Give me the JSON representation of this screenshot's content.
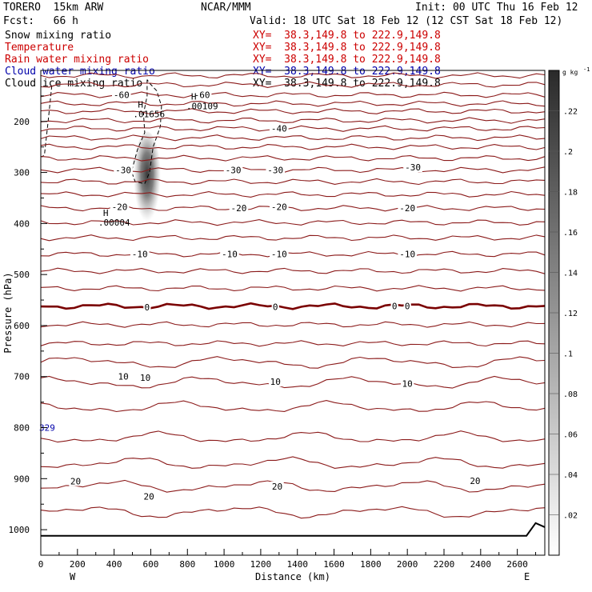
{
  "header": {
    "model": "TORERO  15km ARW",
    "org": "NCAR/MMM",
    "init": "Init: 00 UTC Thu 16 Feb 12",
    "fcst": "Fcst:   66 h",
    "valid": "Valid: 18 UTC Sat 18 Feb 12 (12 CST Sat 18 Feb 12)"
  },
  "fields": [
    {
      "label": "Snow mixing ratio",
      "xy": "XY=  38.3,149.8 to 222.9,149.8",
      "color": "#000000"
    },
    {
      "label": "Temperature",
      "xy": "XY=  38.3,149.8 to 222.9,149.8",
      "color": "#cc0000"
    },
    {
      "label": "Rain water mixing ratio",
      "xy": "XY=  38.3,149.8 to 222.9,149.8",
      "color": "#cc0000"
    },
    {
      "label": "Cloud water mixing ratio",
      "xy": "XY=  38.3,149.8 to 222.9,149.8",
      "color": "#0000aa"
    },
    {
      "label": "Cloud ice mixing ratio",
      "xy": "XY=  38.3,149.8 to 222.9,149.8",
      "color": "#000000"
    }
  ],
  "chart_data": {
    "type": "cross-section contour",
    "xlabel": "Distance (km)",
    "ylabel": "Pressure (hPa)",
    "xlim": [
      0,
      2750
    ],
    "ylim": [
      1050,
      100
    ],
    "x_ticks": [
      0,
      200,
      400,
      600,
      800,
      1000,
      1200,
      1400,
      1600,
      1800,
      2000,
      2200,
      2400,
      2600
    ],
    "x_tick_labels": [
      "0",
      "200",
      "400",
      "600",
      "800",
      "1000",
      "1200",
      "1400",
      "1600",
      "1800",
      "2000",
      "2200",
      "2400",
      "2600"
    ],
    "y_ticks": [
      200,
      300,
      400,
      500,
      600,
      700,
      800,
      900,
      1000
    ],
    "y_tick_labels": [
      "200",
      "300",
      "400",
      "500",
      "600",
      "700",
      "800",
      "900",
      "1000"
    ],
    "endpoint_left": "W",
    "endpoint_right": "E",
    "isotherms": [
      {
        "p": 110,
        "t": null
      },
      {
        "p": 128,
        "t": null
      },
      {
        "p": 148,
        "t": -60
      },
      {
        "p": 165,
        "t": null
      },
      {
        "p": 180,
        "t": null
      },
      {
        "p": 198,
        "t": null
      },
      {
        "p": 214,
        "t": -40
      },
      {
        "p": 232,
        "t": null
      },
      {
        "p": 250,
        "t": null
      },
      {
        "p": 272,
        "t": null
      },
      {
        "p": 295,
        "t": -30
      },
      {
        "p": 318,
        "t": null
      },
      {
        "p": 343,
        "t": null
      },
      {
        "p": 370,
        "t": -20
      },
      {
        "p": 398,
        "t": null
      },
      {
        "p": 428,
        "t": null
      },
      {
        "p": 460,
        "t": -10
      },
      {
        "p": 493,
        "t": null
      },
      {
        "p": 527,
        "t": null
      },
      {
        "p": 562,
        "t": 0
      },
      {
        "p": 598,
        "t": null
      },
      {
        "p": 635,
        "t": null
      },
      {
        "p": 672,
        "t": null
      },
      {
        "p": 712,
        "t": 10
      },
      {
        "p": 760,
        "t": null
      },
      {
        "p": 820,
        "t": null
      },
      {
        "p": 870,
        "t": null
      },
      {
        "p": 915,
        "t": 20
      },
      {
        "p": 965,
        "t": null
      }
    ],
    "contour_labels": [
      {
        "x": 440,
        "p": 148,
        "text": "-60"
      },
      {
        "x": 880,
        "p": 148,
        "text": "-60"
      },
      {
        "x": 1300,
        "p": 214,
        "text": "-40"
      },
      {
        "x": 450,
        "p": 295,
        "text": "-30"
      },
      {
        "x": 1050,
        "p": 295,
        "text": "-30"
      },
      {
        "x": 1280,
        "p": 295,
        "text": "-30"
      },
      {
        "x": 2030,
        "p": 290,
        "text": "-30"
      },
      {
        "x": 430,
        "p": 367,
        "text": "-20"
      },
      {
        "x": 1080,
        "p": 370,
        "text": "-20"
      },
      {
        "x": 1300,
        "p": 367,
        "text": "-20"
      },
      {
        "x": 2000,
        "p": 370,
        "text": "-20"
      },
      {
        "x": 540,
        "p": 460,
        "text": "-10"
      },
      {
        "x": 1030,
        "p": 460,
        "text": "-10"
      },
      {
        "x": 1300,
        "p": 460,
        "text": "-10"
      },
      {
        "x": 2000,
        "p": 460,
        "text": "-10"
      },
      {
        "x": 580,
        "p": 564,
        "text": "0"
      },
      {
        "x": 1280,
        "p": 563,
        "text": "0"
      },
      {
        "x": 1930,
        "p": 562,
        "text": "0"
      },
      {
        "x": 2000,
        "p": 562,
        "text": "0"
      },
      {
        "x": 450,
        "p": 700,
        "text": "10"
      },
      {
        "x": 570,
        "p": 702,
        "text": "10"
      },
      {
        "x": 1280,
        "p": 710,
        "text": "10"
      },
      {
        "x": 2000,
        "p": 714,
        "text": "10"
      },
      {
        "x": 190,
        "p": 905,
        "text": "20"
      },
      {
        "x": 590,
        "p": 935,
        "text": "20"
      },
      {
        "x": 1290,
        "p": 915,
        "text": "20"
      },
      {
        "x": 2370,
        "p": 904,
        "text": "20"
      }
    ],
    "extrema": [
      {
        "x": 530,
        "p": 173,
        "letter": "H",
        "value": ".01656"
      },
      {
        "x": 820,
        "p": 157,
        "letter": "H",
        "value": ".00109"
      },
      {
        "x": 340,
        "p": 385,
        "letter": "H",
        "value": ".00004"
      }
    ],
    "cloud_water_label": {
      "x": 0,
      "p": 800,
      "text": "329"
    },
    "snow_plume": {
      "x": 580,
      "p_top": 220,
      "p_bottom": 405,
      "max": 0.01656
    },
    "colorbar": {
      "unit": "g kg",
      "unit_exp": "-1",
      "min": 0,
      "max": 0.24,
      "ticks": [
        0.02,
        0.04,
        0.06,
        0.08,
        0.1,
        0.12,
        0.14,
        0.16,
        0.18,
        0.2,
        0.22
      ],
      "tick_labels": [
        ".02",
        ".04",
        ".06",
        ".08",
        ".1",
        ".12",
        ".14",
        ".16",
        ".18",
        ".2",
        ".22"
      ]
    }
  }
}
